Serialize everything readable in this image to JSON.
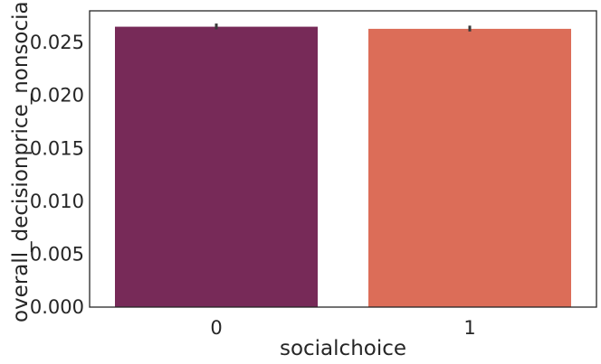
{
  "chart_data": {
    "type": "bar",
    "categories": [
      "0",
      "1"
    ],
    "values": [
      0.0265,
      0.0263
    ],
    "error_bars": [
      {
        "low": 0.02625,
        "high": 0.0268
      },
      {
        "low": 0.02605,
        "high": 0.0266
      }
    ],
    "colors": [
      "#772a58",
      "#dc6d58"
    ],
    "title": "",
    "xlabel": "socialchoice",
    "ylabel": "overall_decisionprice_nonsocial",
    "ylim": [
      0.0,
      0.028
    ],
    "yticks": [
      0.0,
      0.005,
      0.01,
      0.015,
      0.02,
      0.025
    ],
    "ytick_labels": [
      "0.000",
      "0.005",
      "0.010",
      "0.015",
      "0.020",
      "0.025"
    ],
    "grid": false,
    "legend": "none"
  }
}
